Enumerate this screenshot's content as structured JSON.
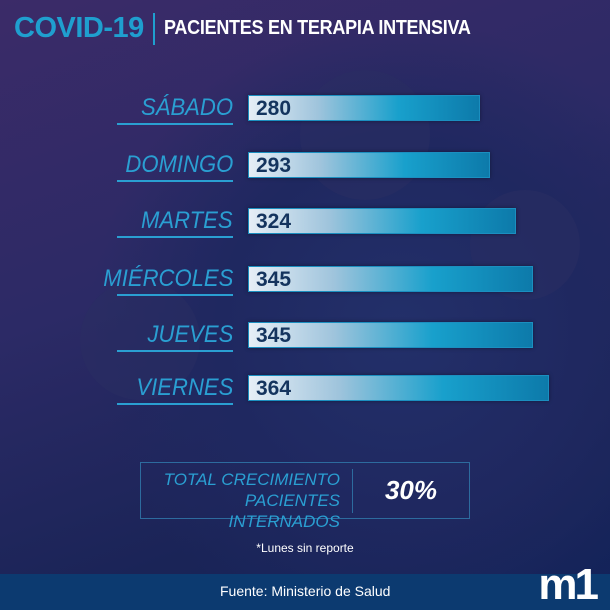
{
  "title": {
    "brand": "COVID-19",
    "subtitle": "PACIENTES EN TERAPIA INTENSIVA"
  },
  "chart_data": {
    "type": "bar",
    "orientation": "horizontal",
    "title": "PACIENTES EN TERAPIA INTENSIVA",
    "categories": [
      "SÁBADO",
      "DOMINGO",
      "MARTES",
      "MIÉRCOLES",
      "JUEVES",
      "VIERNES"
    ],
    "values": [
      280,
      293,
      324,
      345,
      345,
      364
    ],
    "xlabel": "",
    "ylabel": "",
    "xlim": [
      0,
      364
    ]
  },
  "summary": {
    "label_line1": "TOTAL CRECIMIENTO",
    "label_line2": "PACIENTES INTERNADOS",
    "value": "30%"
  },
  "note": "*Lunes sin reporte",
  "footer": {
    "source": "Fuente: Ministerio de Salud",
    "logo": "m1"
  },
  "colors": {
    "accent": "#1f9fcf",
    "footer": "#0c3a70"
  }
}
